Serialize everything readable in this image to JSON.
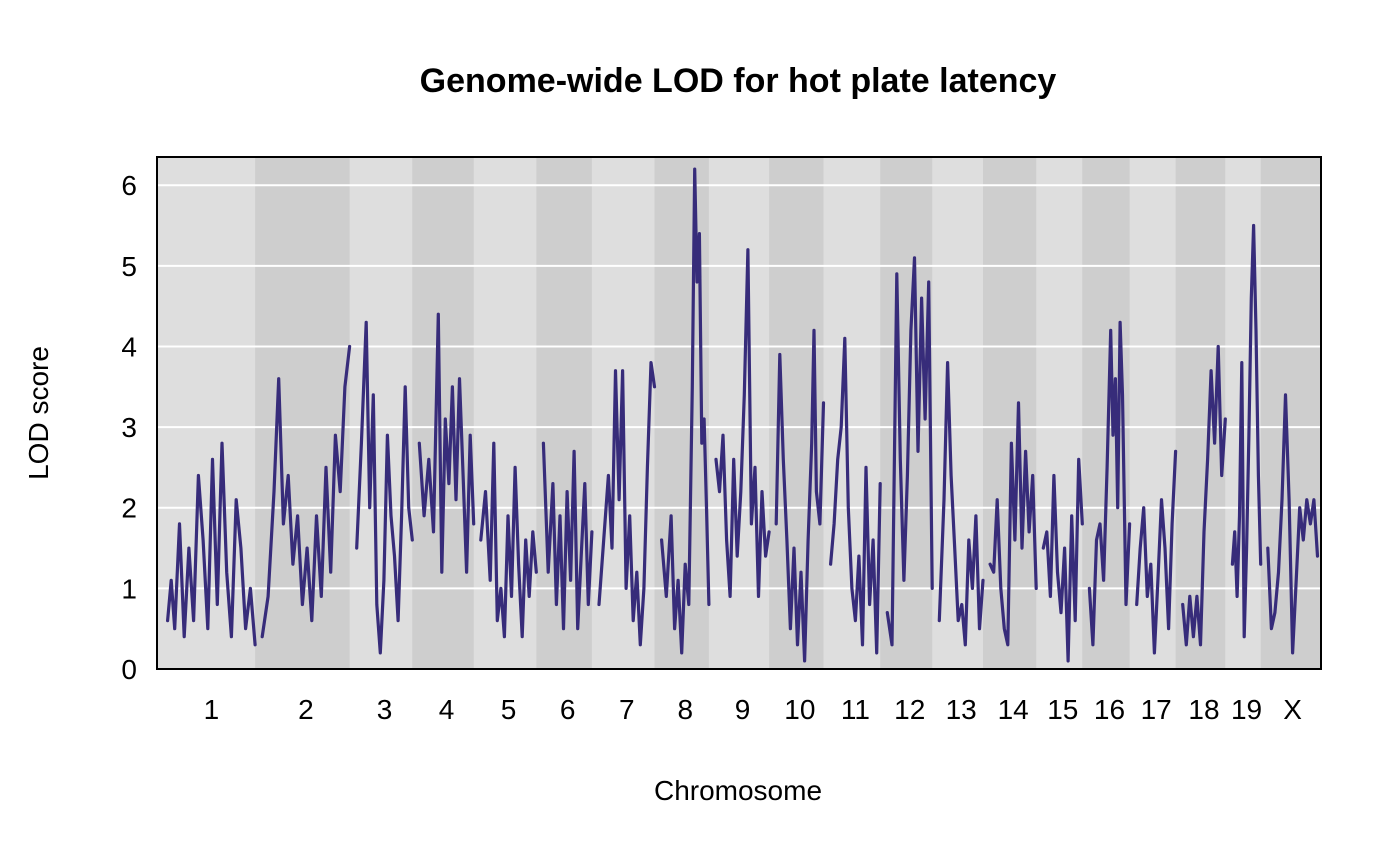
{
  "chart_data": {
    "type": "line",
    "title": "Genome-wide LOD for hot plate latency",
    "xlabel": "Chromosome",
    "ylabel": "LOD score",
    "ylim": [
      0,
      6.35
    ],
    "yticks": [
      0,
      1,
      2,
      3,
      4,
      5,
      6
    ],
    "grid": "horizontal",
    "band_colors": [
      "#dedede",
      "#cecece"
    ],
    "line_color": "#372c7a",
    "background": "#ffffff",
    "chromosomes": [
      {
        "name": "1",
        "points": [
          [
            0,
            0.6
          ],
          [
            3,
            1.1
          ],
          [
            6,
            0.5
          ],
          [
            10,
            1.8
          ],
          [
            14,
            0.4
          ],
          [
            18,
            1.5
          ],
          [
            22,
            0.6
          ],
          [
            26,
            2.4
          ],
          [
            30,
            1.6
          ],
          [
            34,
            0.5
          ],
          [
            38,
            2.6
          ],
          [
            42,
            0.8
          ],
          [
            46,
            2.8
          ],
          [
            50,
            1.2
          ],
          [
            54,
            0.4
          ],
          [
            58,
            2.1
          ],
          [
            62,
            1.5
          ],
          [
            66,
            0.5
          ],
          [
            70,
            1.0
          ],
          [
            74,
            0.3
          ]
        ]
      },
      {
        "name": "2",
        "points": [
          [
            0,
            0.4
          ],
          [
            5,
            0.9
          ],
          [
            10,
            2.2
          ],
          [
            14,
            3.6
          ],
          [
            18,
            1.8
          ],
          [
            22,
            2.4
          ],
          [
            26,
            1.3
          ],
          [
            30,
            1.9
          ],
          [
            34,
            0.8
          ],
          [
            38,
            1.5
          ],
          [
            42,
            0.6
          ],
          [
            46,
            1.9
          ],
          [
            50,
            0.9
          ],
          [
            54,
            2.5
          ],
          [
            58,
            1.2
          ],
          [
            62,
            2.9
          ],
          [
            66,
            2.2
          ],
          [
            70,
            3.5
          ],
          [
            74,
            4.0
          ]
        ]
      },
      {
        "name": "3",
        "points": [
          [
            0,
            1.5
          ],
          [
            4,
            2.8
          ],
          [
            8,
            4.3
          ],
          [
            11,
            2.0
          ],
          [
            14,
            3.4
          ],
          [
            17,
            0.8
          ],
          [
            20,
            0.2
          ],
          [
            23,
            1.1
          ],
          [
            26,
            2.9
          ],
          [
            29,
            1.9
          ],
          [
            32,
            1.4
          ],
          [
            35,
            0.6
          ],
          [
            38,
            1.9
          ],
          [
            41,
            3.5
          ],
          [
            44,
            2.0
          ],
          [
            47,
            1.6
          ]
        ]
      },
      {
        "name": "4",
        "points": [
          [
            0,
            2.8
          ],
          [
            4,
            1.9
          ],
          [
            8,
            2.6
          ],
          [
            12,
            1.7
          ],
          [
            16,
            4.4
          ],
          [
            19,
            1.2
          ],
          [
            22,
            3.1
          ],
          [
            25,
            2.3
          ],
          [
            28,
            3.5
          ],
          [
            31,
            2.1
          ],
          [
            34,
            3.6
          ],
          [
            37,
            2.4
          ],
          [
            40,
            1.2
          ],
          [
            43,
            2.9
          ],
          [
            46,
            1.8
          ]
        ]
      },
      {
        "name": "5",
        "points": [
          [
            0,
            1.6
          ],
          [
            4,
            2.2
          ],
          [
            8,
            1.1
          ],
          [
            11,
            2.8
          ],
          [
            14,
            0.6
          ],
          [
            17,
            1.0
          ],
          [
            20,
            0.4
          ],
          [
            23,
            1.9
          ],
          [
            26,
            0.9
          ],
          [
            29,
            2.5
          ],
          [
            32,
            1.3
          ],
          [
            35,
            0.4
          ],
          [
            38,
            1.6
          ],
          [
            41,
            0.9
          ],
          [
            44,
            1.7
          ],
          [
            47,
            1.2
          ]
        ]
      },
      {
        "name": "6",
        "points": [
          [
            0,
            2.8
          ],
          [
            4,
            1.2
          ],
          [
            8,
            2.3
          ],
          [
            11,
            0.8
          ],
          [
            14,
            1.9
          ],
          [
            17,
            0.5
          ],
          [
            20,
            2.2
          ],
          [
            23,
            1.1
          ],
          [
            26,
            2.7
          ],
          [
            29,
            0.5
          ],
          [
            32,
            1.4
          ],
          [
            35,
            2.3
          ],
          [
            38,
            0.8
          ],
          [
            41,
            1.7
          ]
        ]
      },
      {
        "name": "7",
        "points": [
          [
            0,
            0.8
          ],
          [
            4,
            1.6
          ],
          [
            8,
            2.4
          ],
          [
            11,
            1.5
          ],
          [
            14,
            3.7
          ],
          [
            17,
            2.1
          ],
          [
            20,
            3.7
          ],
          [
            23,
            1.0
          ],
          [
            26,
            1.9
          ],
          [
            29,
            0.6
          ],
          [
            32,
            1.2
          ],
          [
            35,
            0.3
          ],
          [
            38,
            1.0
          ],
          [
            41,
            2.5
          ],
          [
            44,
            3.8
          ],
          [
            47,
            3.5
          ]
        ]
      },
      {
        "name": "8",
        "points": [
          [
            0,
            1.6
          ],
          [
            4,
            0.9
          ],
          [
            8,
            1.9
          ],
          [
            11,
            0.5
          ],
          [
            14,
            1.1
          ],
          [
            17,
            0.2
          ],
          [
            20,
            1.3
          ],
          [
            23,
            0.8
          ],
          [
            26,
            3.5
          ],
          [
            28,
            6.2
          ],
          [
            30,
            4.8
          ],
          [
            32,
            5.4
          ],
          [
            34,
            2.8
          ],
          [
            36,
            3.1
          ],
          [
            38,
            2.0
          ],
          [
            40,
            0.8
          ]
        ]
      },
      {
        "name": "9",
        "points": [
          [
            0,
            2.6
          ],
          [
            3,
            2.2
          ],
          [
            6,
            2.9
          ],
          [
            9,
            1.6
          ],
          [
            12,
            0.9
          ],
          [
            15,
            2.6
          ],
          [
            18,
            1.4
          ],
          [
            21,
            2.2
          ],
          [
            24,
            3.4
          ],
          [
            27,
            5.2
          ],
          [
            30,
            1.8
          ],
          [
            33,
            2.5
          ],
          [
            36,
            0.9
          ],
          [
            39,
            2.2
          ],
          [
            42,
            1.4
          ],
          [
            45,
            1.7
          ]
        ]
      },
      {
        "name": "10",
        "points": [
          [
            0,
            1.8
          ],
          [
            3,
            3.9
          ],
          [
            6,
            2.6
          ],
          [
            9,
            1.6
          ],
          [
            12,
            0.5
          ],
          [
            15,
            1.5
          ],
          [
            18,
            0.3
          ],
          [
            21,
            1.2
          ],
          [
            24,
            0.1
          ],
          [
            27,
            1.6
          ],
          [
            30,
            2.8
          ],
          [
            32,
            4.2
          ],
          [
            34,
            2.2
          ],
          [
            37,
            1.8
          ],
          [
            40,
            3.3
          ]
        ]
      },
      {
        "name": "11",
        "points": [
          [
            0,
            1.3
          ],
          [
            3,
            1.8
          ],
          [
            6,
            2.6
          ],
          [
            9,
            3.0
          ],
          [
            12,
            4.1
          ],
          [
            15,
            2.0
          ],
          [
            18,
            1.0
          ],
          [
            21,
            0.6
          ],
          [
            24,
            1.4
          ],
          [
            27,
            0.3
          ],
          [
            30,
            2.5
          ],
          [
            33,
            0.8
          ],
          [
            36,
            1.6
          ],
          [
            39,
            0.2
          ],
          [
            42,
            2.3
          ]
        ]
      },
      {
        "name": "12",
        "points": [
          [
            0,
            0.7
          ],
          [
            4,
            0.3
          ],
          [
            8,
            4.9
          ],
          [
            11,
            2.6
          ],
          [
            14,
            1.1
          ],
          [
            17,
            2.4
          ],
          [
            20,
            4.2
          ],
          [
            23,
            5.1
          ],
          [
            26,
            2.7
          ],
          [
            29,
            4.6
          ],
          [
            32,
            3.1
          ],
          [
            35,
            4.8
          ],
          [
            38,
            1.0
          ]
        ]
      },
      {
        "name": "13",
        "points": [
          [
            0,
            0.6
          ],
          [
            4,
            2.1
          ],
          [
            7,
            3.8
          ],
          [
            10,
            2.4
          ],
          [
            13,
            1.5
          ],
          [
            16,
            0.6
          ],
          [
            19,
            0.8
          ],
          [
            22,
            0.3
          ],
          [
            25,
            1.6
          ],
          [
            28,
            1.0
          ],
          [
            31,
            1.9
          ],
          [
            34,
            0.5
          ],
          [
            37,
            1.1
          ]
        ]
      },
      {
        "name": "14",
        "points": [
          [
            0,
            1.3
          ],
          [
            3,
            1.2
          ],
          [
            6,
            2.1
          ],
          [
            9,
            1.0
          ],
          [
            12,
            0.5
          ],
          [
            15,
            0.3
          ],
          [
            18,
            2.8
          ],
          [
            21,
            1.6
          ],
          [
            24,
            3.3
          ],
          [
            27,
            1.5
          ],
          [
            30,
            2.7
          ],
          [
            33,
            1.7
          ],
          [
            36,
            2.4
          ],
          [
            39,
            1.0
          ]
        ]
      },
      {
        "name": "15",
        "points": [
          [
            0,
            1.5
          ],
          [
            3,
            1.7
          ],
          [
            6,
            0.9
          ],
          [
            9,
            2.4
          ],
          [
            12,
            1.2
          ],
          [
            15,
            0.7
          ],
          [
            18,
            1.5
          ],
          [
            21,
            0.1
          ],
          [
            24,
            1.9
          ],
          [
            27,
            0.6
          ],
          [
            30,
            2.6
          ],
          [
            33,
            1.8
          ]
        ]
      },
      {
        "name": "16",
        "points": [
          [
            0,
            1.0
          ],
          [
            3,
            0.3
          ],
          [
            6,
            1.6
          ],
          [
            9,
            1.8
          ],
          [
            12,
            1.1
          ],
          [
            15,
            2.5
          ],
          [
            18,
            4.2
          ],
          [
            20,
            2.9
          ],
          [
            22,
            3.6
          ],
          [
            24,
            2.0
          ],
          [
            26,
            4.3
          ],
          [
            28,
            3.4
          ],
          [
            31,
            0.8
          ],
          [
            34,
            1.8
          ]
        ]
      },
      {
        "name": "17",
        "points": [
          [
            0,
            0.8
          ],
          [
            3,
            1.5
          ],
          [
            6,
            2.0
          ],
          [
            9,
            0.9
          ],
          [
            12,
            1.3
          ],
          [
            15,
            0.2
          ],
          [
            18,
            1.1
          ],
          [
            21,
            2.1
          ],
          [
            24,
            1.5
          ],
          [
            27,
            0.5
          ],
          [
            30,
            1.8
          ],
          [
            33,
            2.7
          ]
        ]
      },
      {
        "name": "18",
        "points": [
          [
            0,
            0.8
          ],
          [
            3,
            0.3
          ],
          [
            6,
            0.9
          ],
          [
            9,
            0.4
          ],
          [
            12,
            0.9
          ],
          [
            15,
            0.3
          ],
          [
            18,
            1.7
          ],
          [
            21,
            2.6
          ],
          [
            24,
            3.7
          ],
          [
            27,
            2.8
          ],
          [
            30,
            4.0
          ],
          [
            33,
            2.4
          ],
          [
            36,
            3.1
          ]
        ]
      },
      {
        "name": "19",
        "points": [
          [
            0,
            1.3
          ],
          [
            2,
            1.7
          ],
          [
            4,
            0.9
          ],
          [
            6,
            1.9
          ],
          [
            8,
            3.8
          ],
          [
            10,
            0.4
          ],
          [
            12,
            1.5
          ],
          [
            14,
            2.9
          ],
          [
            16,
            4.6
          ],
          [
            18,
            5.5
          ],
          [
            20,
            4.2
          ],
          [
            22,
            2.4
          ],
          [
            24,
            1.3
          ]
        ]
      },
      {
        "name": "X",
        "points": [
          [
            0,
            1.5
          ],
          [
            3,
            0.5
          ],
          [
            6,
            0.7
          ],
          [
            9,
            1.2
          ],
          [
            12,
            2.1
          ],
          [
            15,
            3.4
          ],
          [
            18,
            2.1
          ],
          [
            21,
            0.2
          ],
          [
            24,
            1.1
          ],
          [
            27,
            2.0
          ],
          [
            30,
            1.6
          ],
          [
            33,
            2.1
          ],
          [
            36,
            1.8
          ],
          [
            39,
            2.1
          ],
          [
            42,
            1.4
          ]
        ]
      }
    ]
  }
}
